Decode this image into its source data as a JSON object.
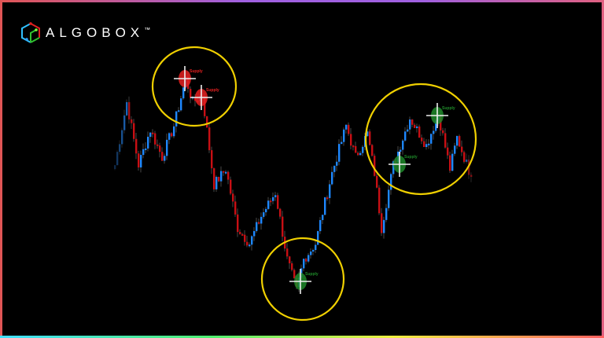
{
  "brand": {
    "name": "ALGOBOX",
    "tm": "™"
  },
  "colors": {
    "bull": "#1e88ff",
    "bear": "#c80f14",
    "supply": "#e52020",
    "demand": "#1f8a2a",
    "highlight": "#f0d000",
    "background": "#000000"
  },
  "chart_data": {
    "type": "candlestick",
    "axes_visible": false,
    "grid": false,
    "pivots": [
      {
        "bar": 0,
        "price": 220
      },
      {
        "bar": 5,
        "price": 300
      },
      {
        "bar": 10,
        "price": 220
      },
      {
        "bar": 15,
        "price": 265
      },
      {
        "bar": 20,
        "price": 230
      },
      {
        "bar": 25,
        "price": 270
      },
      {
        "bar": 30,
        "price": 330
      },
      {
        "bar": 33,
        "price": 300
      },
      {
        "bar": 37,
        "price": 310
      },
      {
        "bar": 42,
        "price": 195
      },
      {
        "bar": 47,
        "price": 215
      },
      {
        "bar": 52,
        "price": 140
      },
      {
        "bar": 57,
        "price": 120
      },
      {
        "bar": 62,
        "price": 155
      },
      {
        "bar": 68,
        "price": 185
      },
      {
        "bar": 73,
        "price": 100
      },
      {
        "bar": 77,
        "price": 60
      },
      {
        "bar": 80,
        "price": 100
      },
      {
        "bar": 85,
        "price": 120
      },
      {
        "bar": 88,
        "price": 160
      },
      {
        "bar": 92,
        "price": 210
      },
      {
        "bar": 98,
        "price": 270
      },
      {
        "bar": 102,
        "price": 230
      },
      {
        "bar": 107,
        "price": 260
      },
      {
        "bar": 110,
        "price": 210
      },
      {
        "bar": 113,
        "price": 140
      },
      {
        "bar": 118,
        "price": 220
      },
      {
        "bar": 125,
        "price": 280
      },
      {
        "bar": 132,
        "price": 245
      },
      {
        "bar": 137,
        "price": 285
      },
      {
        "bar": 142,
        "price": 215
      },
      {
        "bar": 145,
        "price": 255
      },
      {
        "bar": 148,
        "price": 230
      },
      {
        "bar": 151,
        "price": 205
      }
    ],
    "zones": [
      {
        "type": "supply",
        "label": "Supply",
        "bar": 30,
        "price": 330
      },
      {
        "type": "supply",
        "label": "Supply",
        "bar": 37,
        "price": 306
      },
      {
        "type": "demand",
        "label": "Supply",
        "bar": 79,
        "price": 72
      },
      {
        "type": "demand",
        "label": "Supply",
        "bar": 121,
        "price": 221
      },
      {
        "type": "demand",
        "label": "Supply",
        "bar": 137,
        "price": 283
      }
    ],
    "highlights": [
      {
        "bar": 34,
        "price": 320
      },
      {
        "bar": 80,
        "price": 75
      },
      {
        "bar": 130,
        "price": 253
      }
    ]
  }
}
